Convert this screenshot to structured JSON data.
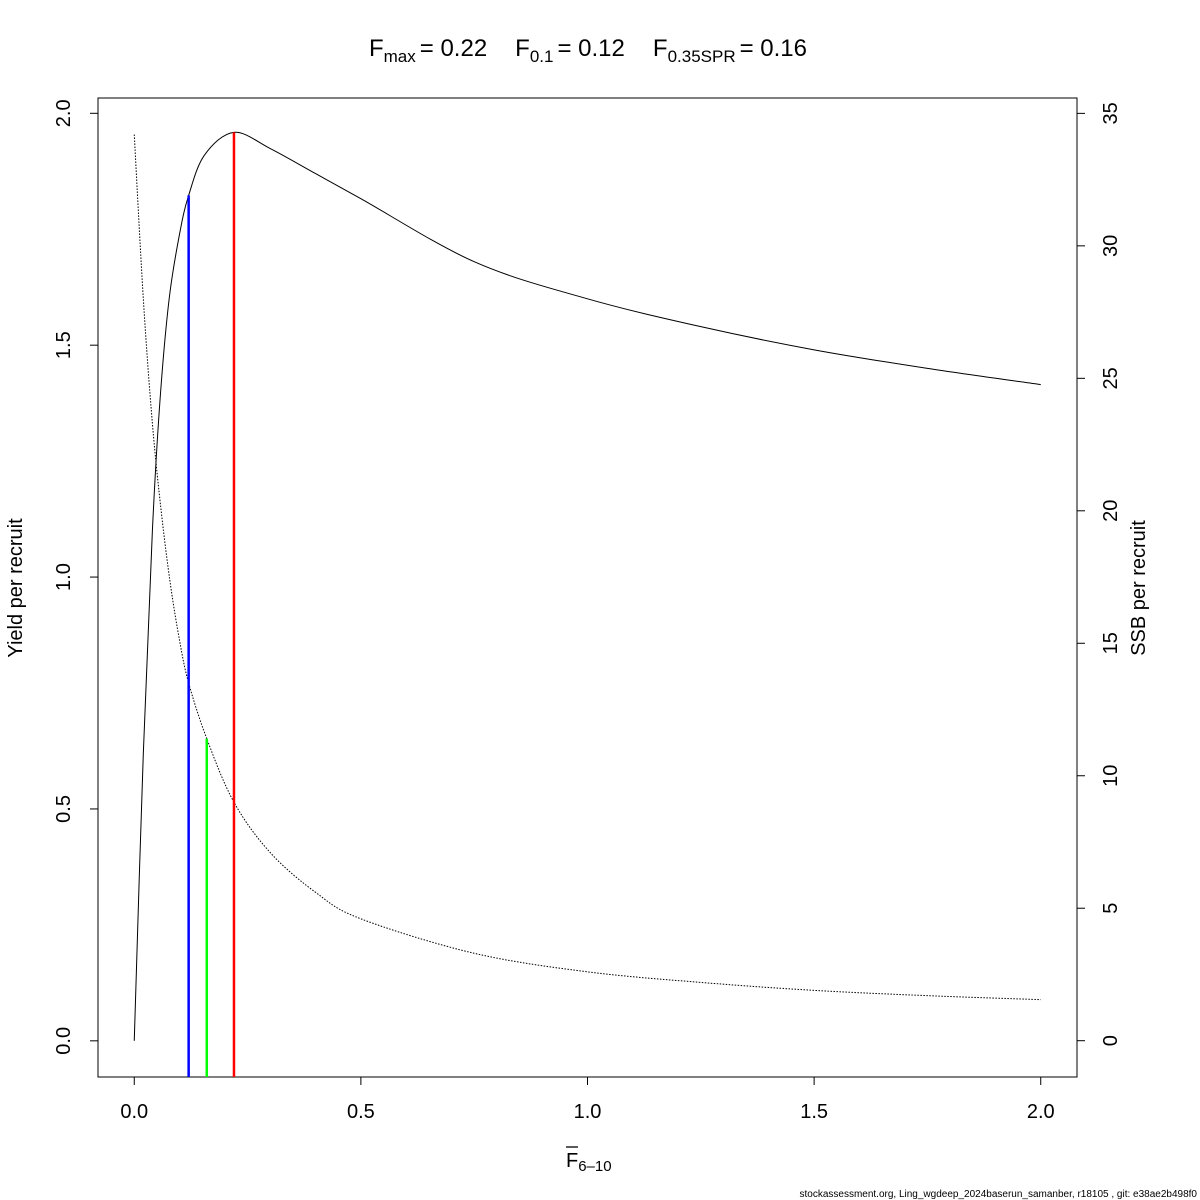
{
  "chart_data": {
    "type": "line",
    "title": {
      "fmax_label": "F",
      "fmax_sub": "max",
      "fmax_value": "= 0.22",
      "f01_label": "F",
      "f01_sub": "0.1",
      "f01_value": "= 0.12",
      "fspr_label": "F",
      "fspr_sub": "0.35SPR",
      "fspr_value": "= 0.16"
    },
    "xlabel": "F",
    "xlabel_sub": "6–10",
    "ylabel": "Yield per recruit",
    "y2label": "SSB per recruit",
    "xlim": [
      -0.08,
      2.08
    ],
    "ylim": [
      -0.078,
      2.033
    ],
    "y2lim": [
      -1.37,
      35.58
    ],
    "x_ticks": [
      "0.0",
      "0.5",
      "1.0",
      "1.5",
      "2.0"
    ],
    "y_ticks": [
      "0.0",
      "0.5",
      "1.0",
      "1.5",
      "2.0"
    ],
    "y2_ticks": [
      "0",
      "5",
      "10",
      "15",
      "20",
      "25",
      "30",
      "35"
    ],
    "grid": false,
    "series": [
      {
        "axis": "left",
        "style": "solid",
        "color": "#000000",
        "x": [
          0,
          0.02,
          0.04,
          0.057,
          0.077,
          0.1,
          0.12,
          0.155,
          0.22,
          0.3,
          0.4,
          0.5,
          0.75,
          1.0,
          1.25,
          1.5,
          1.75,
          2.0
        ],
        "y": [
          0,
          0.62,
          1.1,
          1.384,
          1.6,
          1.74,
          1.823,
          1.91,
          1.959,
          1.924,
          1.87,
          1.816,
          1.68,
          1.6,
          1.54,
          1.49,
          1.45,
          1.415
        ]
      },
      {
        "axis": "right",
        "style": "dotted",
        "color": "#000000",
        "x": [
          0,
          0.02,
          0.04,
          0.06,
          0.08,
          0.1,
          0.12,
          0.16,
          0.22,
          0.3,
          0.4,
          0.5,
          0.75,
          1.0,
          1.25,
          1.5,
          1.75,
          2.0
        ],
        "y": [
          34.2,
          28.0,
          23.3,
          19.9,
          17.2,
          15.1,
          13.5,
          11.4,
          9.0,
          7.1,
          5.6,
          4.6,
          3.3,
          2.6,
          2.2,
          1.9,
          1.7,
          1.55
        ]
      }
    ],
    "reference_lines": [
      {
        "name": "F0.1",
        "x": 0.12,
        "axis": "left",
        "top": 1.823,
        "color": "#0000ff"
      },
      {
        "name": "F0.35SPR",
        "x": 0.16,
        "axis": "right",
        "top": 11.4,
        "color": "#00ff00"
      },
      {
        "name": "Fmax",
        "x": 0.22,
        "axis": "left",
        "top": 1.959,
        "color": "#ff0000"
      }
    ]
  },
  "footer": "stockassessment.org, Ling_wgdeep_2024baserun_samanber, r18105 , git: e38ae2b498f0"
}
